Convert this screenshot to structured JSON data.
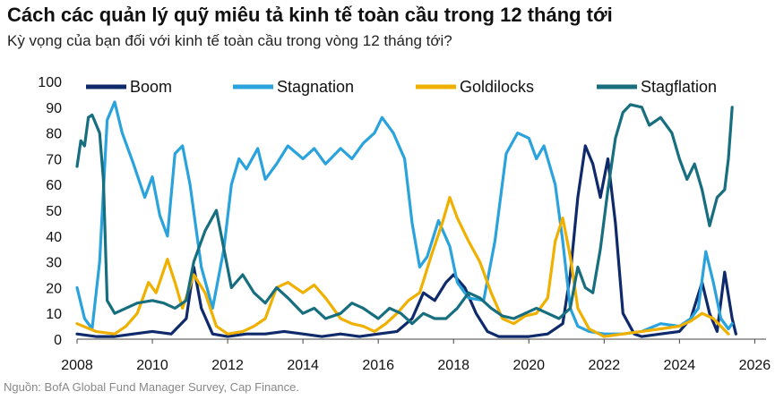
{
  "title": "Cách các quản lý quỹ miêu tả kinh tế toàn cầu trong 12 tháng tới",
  "subtitle": "Kỳ vọng của bạn đối với kinh tế toàn cầu trong vòng 12 tháng tới?",
  "source": "Nguồn: BofA Global Fund Manager Survey, Cap Finance.",
  "chart_data": {
    "type": "line",
    "title": "Cách các quản lý quỹ miêu tả kinh tế toàn cầu trong 12 tháng tới",
    "xlabel": "",
    "ylabel": "",
    "xlim": [
      2008,
      2026.3
    ],
    "ylim": [
      0,
      100
    ],
    "x_ticks": [
      2008,
      2010,
      2012,
      2014,
      2016,
      2018,
      2020,
      2022,
      2024,
      2026
    ],
    "y_ticks": [
      0,
      10,
      20,
      30,
      40,
      50,
      60,
      70,
      80,
      90,
      100
    ],
    "legend_position": "top",
    "series": [
      {
        "name": "Boom",
        "color": "#0f2a6b",
        "points": [
          [
            2008.0,
            2
          ],
          [
            2008.5,
            1
          ],
          [
            2009.0,
            1
          ],
          [
            2009.5,
            2
          ],
          [
            2010.0,
            3
          ],
          [
            2010.5,
            2
          ],
          [
            2010.9,
            8
          ],
          [
            2011.1,
            28
          ],
          [
            2011.3,
            12
          ],
          [
            2011.6,
            2
          ],
          [
            2012.0,
            1
          ],
          [
            2012.5,
            2
          ],
          [
            2013.0,
            2
          ],
          [
            2013.5,
            3
          ],
          [
            2014.0,
            2
          ],
          [
            2014.5,
            1
          ],
          [
            2015.0,
            2
          ],
          [
            2015.5,
            1
          ],
          [
            2016.0,
            2
          ],
          [
            2016.5,
            3
          ],
          [
            2016.9,
            8
          ],
          [
            2017.2,
            18
          ],
          [
            2017.5,
            15
          ],
          [
            2017.8,
            22
          ],
          [
            2018.0,
            25
          ],
          [
            2018.3,
            20
          ],
          [
            2018.6,
            10
          ],
          [
            2018.9,
            3
          ],
          [
            2019.2,
            1
          ],
          [
            2019.6,
            1
          ],
          [
            2020.0,
            1
          ],
          [
            2020.5,
            2
          ],
          [
            2020.9,
            6
          ],
          [
            2021.1,
            25
          ],
          [
            2021.3,
            55
          ],
          [
            2021.5,
            75
          ],
          [
            2021.7,
            68
          ],
          [
            2021.9,
            55
          ],
          [
            2022.1,
            70
          ],
          [
            2022.3,
            45
          ],
          [
            2022.5,
            10
          ],
          [
            2022.8,
            2
          ],
          [
            2023.0,
            1
          ],
          [
            2023.5,
            2
          ],
          [
            2024.0,
            3
          ],
          [
            2024.3,
            8
          ],
          [
            2024.6,
            22
          ],
          [
            2024.8,
            10
          ],
          [
            2025.0,
            3
          ],
          [
            2025.2,
            26
          ],
          [
            2025.4,
            8
          ],
          [
            2025.5,
            2
          ]
        ]
      },
      {
        "name": "Stagnation",
        "color": "#2aa3dd",
        "points": [
          [
            2008.0,
            20
          ],
          [
            2008.2,
            8
          ],
          [
            2008.4,
            4
          ],
          [
            2008.6,
            30
          ],
          [
            2008.8,
            85
          ],
          [
            2009.0,
            92
          ],
          [
            2009.2,
            80
          ],
          [
            2009.5,
            68
          ],
          [
            2009.8,
            55
          ],
          [
            2010.0,
            63
          ],
          [
            2010.2,
            48
          ],
          [
            2010.4,
            40
          ],
          [
            2010.6,
            72
          ],
          [
            2010.8,
            75
          ],
          [
            2011.0,
            60
          ],
          [
            2011.3,
            28
          ],
          [
            2011.6,
            12
          ],
          [
            2011.9,
            35
          ],
          [
            2012.1,
            60
          ],
          [
            2012.3,
            70
          ],
          [
            2012.5,
            66
          ],
          [
            2012.8,
            74
          ],
          [
            2013.0,
            62
          ],
          [
            2013.3,
            68
          ],
          [
            2013.6,
            75
          ],
          [
            2014.0,
            70
          ],
          [
            2014.3,
            74
          ],
          [
            2014.6,
            68
          ],
          [
            2015.0,
            74
          ],
          [
            2015.3,
            70
          ],
          [
            2015.6,
            76
          ],
          [
            2015.9,
            80
          ],
          [
            2016.1,
            86
          ],
          [
            2016.4,
            80
          ],
          [
            2016.7,
            70
          ],
          [
            2016.9,
            45
          ],
          [
            2017.1,
            28
          ],
          [
            2017.3,
            32
          ],
          [
            2017.6,
            46
          ],
          [
            2017.9,
            36
          ],
          [
            2018.1,
            22
          ],
          [
            2018.4,
            16
          ],
          [
            2018.8,
            15
          ],
          [
            2019.1,
            38
          ],
          [
            2019.4,
            72
          ],
          [
            2019.7,
            80
          ],
          [
            2020.0,
            78
          ],
          [
            2020.2,
            70
          ],
          [
            2020.4,
            75
          ],
          [
            2020.7,
            60
          ],
          [
            2020.9,
            38
          ],
          [
            2021.1,
            12
          ],
          [
            2021.3,
            5
          ],
          [
            2021.6,
            3
          ],
          [
            2022.0,
            2
          ],
          [
            2022.5,
            2
          ],
          [
            2023.0,
            3
          ],
          [
            2023.5,
            6
          ],
          [
            2024.0,
            5
          ],
          [
            2024.3,
            8
          ],
          [
            2024.5,
            12
          ],
          [
            2024.7,
            34
          ],
          [
            2024.9,
            22
          ],
          [
            2025.1,
            8
          ],
          [
            2025.3,
            4
          ],
          [
            2025.4,
            6
          ]
        ]
      },
      {
        "name": "Goldilocks",
        "color": "#f0b000",
        "points": [
          [
            2008.0,
            6
          ],
          [
            2008.5,
            3
          ],
          [
            2009.0,
            2
          ],
          [
            2009.3,
            5
          ],
          [
            2009.6,
            10
          ],
          [
            2009.9,
            22
          ],
          [
            2010.1,
            18
          ],
          [
            2010.4,
            31
          ],
          [
            2010.6,
            22
          ],
          [
            2010.8,
            12
          ],
          [
            2011.1,
            25
          ],
          [
            2011.4,
            18
          ],
          [
            2011.7,
            5
          ],
          [
            2012.0,
            2
          ],
          [
            2012.4,
            3
          ],
          [
            2012.7,
            5
          ],
          [
            2013.0,
            8
          ],
          [
            2013.3,
            20
          ],
          [
            2013.6,
            22
          ],
          [
            2014.0,
            18
          ],
          [
            2014.3,
            21
          ],
          [
            2014.6,
            16
          ],
          [
            2015.0,
            8
          ],
          [
            2015.3,
            6
          ],
          [
            2015.6,
            5
          ],
          [
            2015.9,
            3
          ],
          [
            2016.2,
            6
          ],
          [
            2016.5,
            10
          ],
          [
            2016.8,
            15
          ],
          [
            2017.1,
            18
          ],
          [
            2017.4,
            32
          ],
          [
            2017.7,
            45
          ],
          [
            2017.9,
            55
          ],
          [
            2018.1,
            47
          ],
          [
            2018.4,
            38
          ],
          [
            2018.7,
            30
          ],
          [
            2019.0,
            18
          ],
          [
            2019.3,
            8
          ],
          [
            2019.6,
            6
          ],
          [
            2019.9,
            9
          ],
          [
            2020.2,
            10
          ],
          [
            2020.5,
            16
          ],
          [
            2020.7,
            38
          ],
          [
            2020.9,
            47
          ],
          [
            2021.1,
            32
          ],
          [
            2021.3,
            12
          ],
          [
            2021.6,
            4
          ],
          [
            2022.0,
            1
          ],
          [
            2022.5,
            2
          ],
          [
            2023.0,
            3
          ],
          [
            2023.5,
            4
          ],
          [
            2024.0,
            5
          ],
          [
            2024.3,
            7
          ],
          [
            2024.6,
            10
          ],
          [
            2024.9,
            8
          ],
          [
            2025.1,
            5
          ],
          [
            2025.3,
            2
          ]
        ]
      },
      {
        "name": "Stagflation",
        "color": "#176e7e",
        "points": [
          [
            2008.0,
            67
          ],
          [
            2008.1,
            77
          ],
          [
            2008.2,
            75
          ],
          [
            2008.3,
            86
          ],
          [
            2008.4,
            87
          ],
          [
            2008.6,
            80
          ],
          [
            2008.7,
            62
          ],
          [
            2008.8,
            15
          ],
          [
            2009.0,
            10
          ],
          [
            2009.3,
            12
          ],
          [
            2009.6,
            14
          ],
          [
            2010.0,
            15
          ],
          [
            2010.3,
            14
          ],
          [
            2010.6,
            12
          ],
          [
            2010.9,
            15
          ],
          [
            2011.1,
            30
          ],
          [
            2011.4,
            42
          ],
          [
            2011.7,
            50
          ],
          [
            2011.9,
            35
          ],
          [
            2012.1,
            20
          ],
          [
            2012.4,
            25
          ],
          [
            2012.7,
            18
          ],
          [
            2013.0,
            14
          ],
          [
            2013.3,
            20
          ],
          [
            2013.6,
            16
          ],
          [
            2014.0,
            10
          ],
          [
            2014.3,
            12
          ],
          [
            2014.6,
            8
          ],
          [
            2015.0,
            10
          ],
          [
            2015.3,
            14
          ],
          [
            2015.6,
            12
          ],
          [
            2016.0,
            8
          ],
          [
            2016.3,
            12
          ],
          [
            2016.6,
            10
          ],
          [
            2016.9,
            6
          ],
          [
            2017.2,
            10
          ],
          [
            2017.5,
            8
          ],
          [
            2017.8,
            8
          ],
          [
            2018.1,
            12
          ],
          [
            2018.4,
            18
          ],
          [
            2018.7,
            16
          ],
          [
            2019.0,
            12
          ],
          [
            2019.3,
            9
          ],
          [
            2019.6,
            8
          ],
          [
            2019.9,
            10
          ],
          [
            2020.2,
            12
          ],
          [
            2020.5,
            10
          ],
          [
            2020.8,
            8
          ],
          [
            2021.1,
            12
          ],
          [
            2021.3,
            28
          ],
          [
            2021.5,
            20
          ],
          [
            2021.7,
            18
          ],
          [
            2021.9,
            35
          ],
          [
            2022.1,
            58
          ],
          [
            2022.3,
            78
          ],
          [
            2022.5,
            88
          ],
          [
            2022.7,
            91
          ],
          [
            2023.0,
            90
          ],
          [
            2023.2,
            83
          ],
          [
            2023.5,
            86
          ],
          [
            2023.8,
            80
          ],
          [
            2024.0,
            70
          ],
          [
            2024.2,
            62
          ],
          [
            2024.4,
            68
          ],
          [
            2024.6,
            58
          ],
          [
            2024.8,
            44
          ],
          [
            2025.0,
            55
          ],
          [
            2025.2,
            58
          ],
          [
            2025.3,
            70
          ],
          [
            2025.4,
            90
          ]
        ]
      }
    ]
  }
}
